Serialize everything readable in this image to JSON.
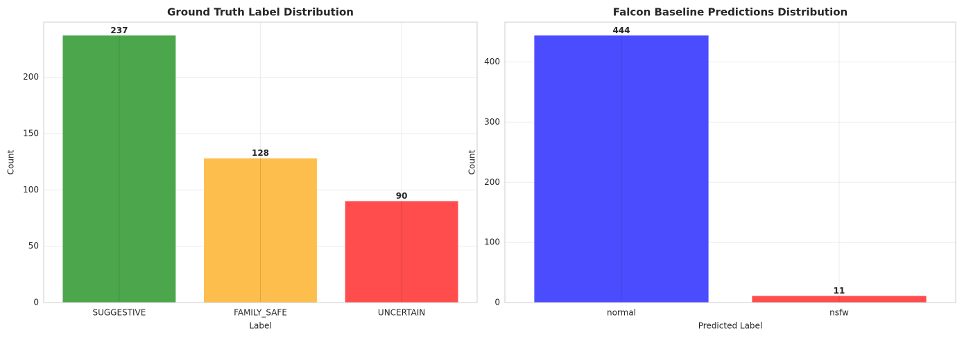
{
  "chart_data": [
    {
      "type": "bar",
      "title": "Ground Truth Label Distribution",
      "xlabel": "Label",
      "ylabel": "Count",
      "categories": [
        "SUGGESTIVE",
        "FAMILY_SAFE",
        "UNCERTAIN"
      ],
      "values": [
        237,
        128,
        90
      ],
      "colors": [
        "#4ca64c",
        "#fdbe4d",
        "#ff4c4c"
      ],
      "ylim": [
        0,
        248.85
      ],
      "yticks": [
        0,
        50,
        100,
        150,
        200
      ],
      "grid": true
    },
    {
      "type": "bar",
      "title": "Falcon Baseline Predictions Distribution",
      "xlabel": "Predicted Label",
      "ylabel": "Count",
      "categories": [
        "normal",
        "nsfw"
      ],
      "values": [
        444,
        11
      ],
      "colors": [
        "#4c4cff",
        "#ff4c4c"
      ],
      "ylim": [
        0,
        466.2
      ],
      "yticks": [
        0,
        100,
        200,
        300,
        400
      ],
      "grid": true
    }
  ]
}
